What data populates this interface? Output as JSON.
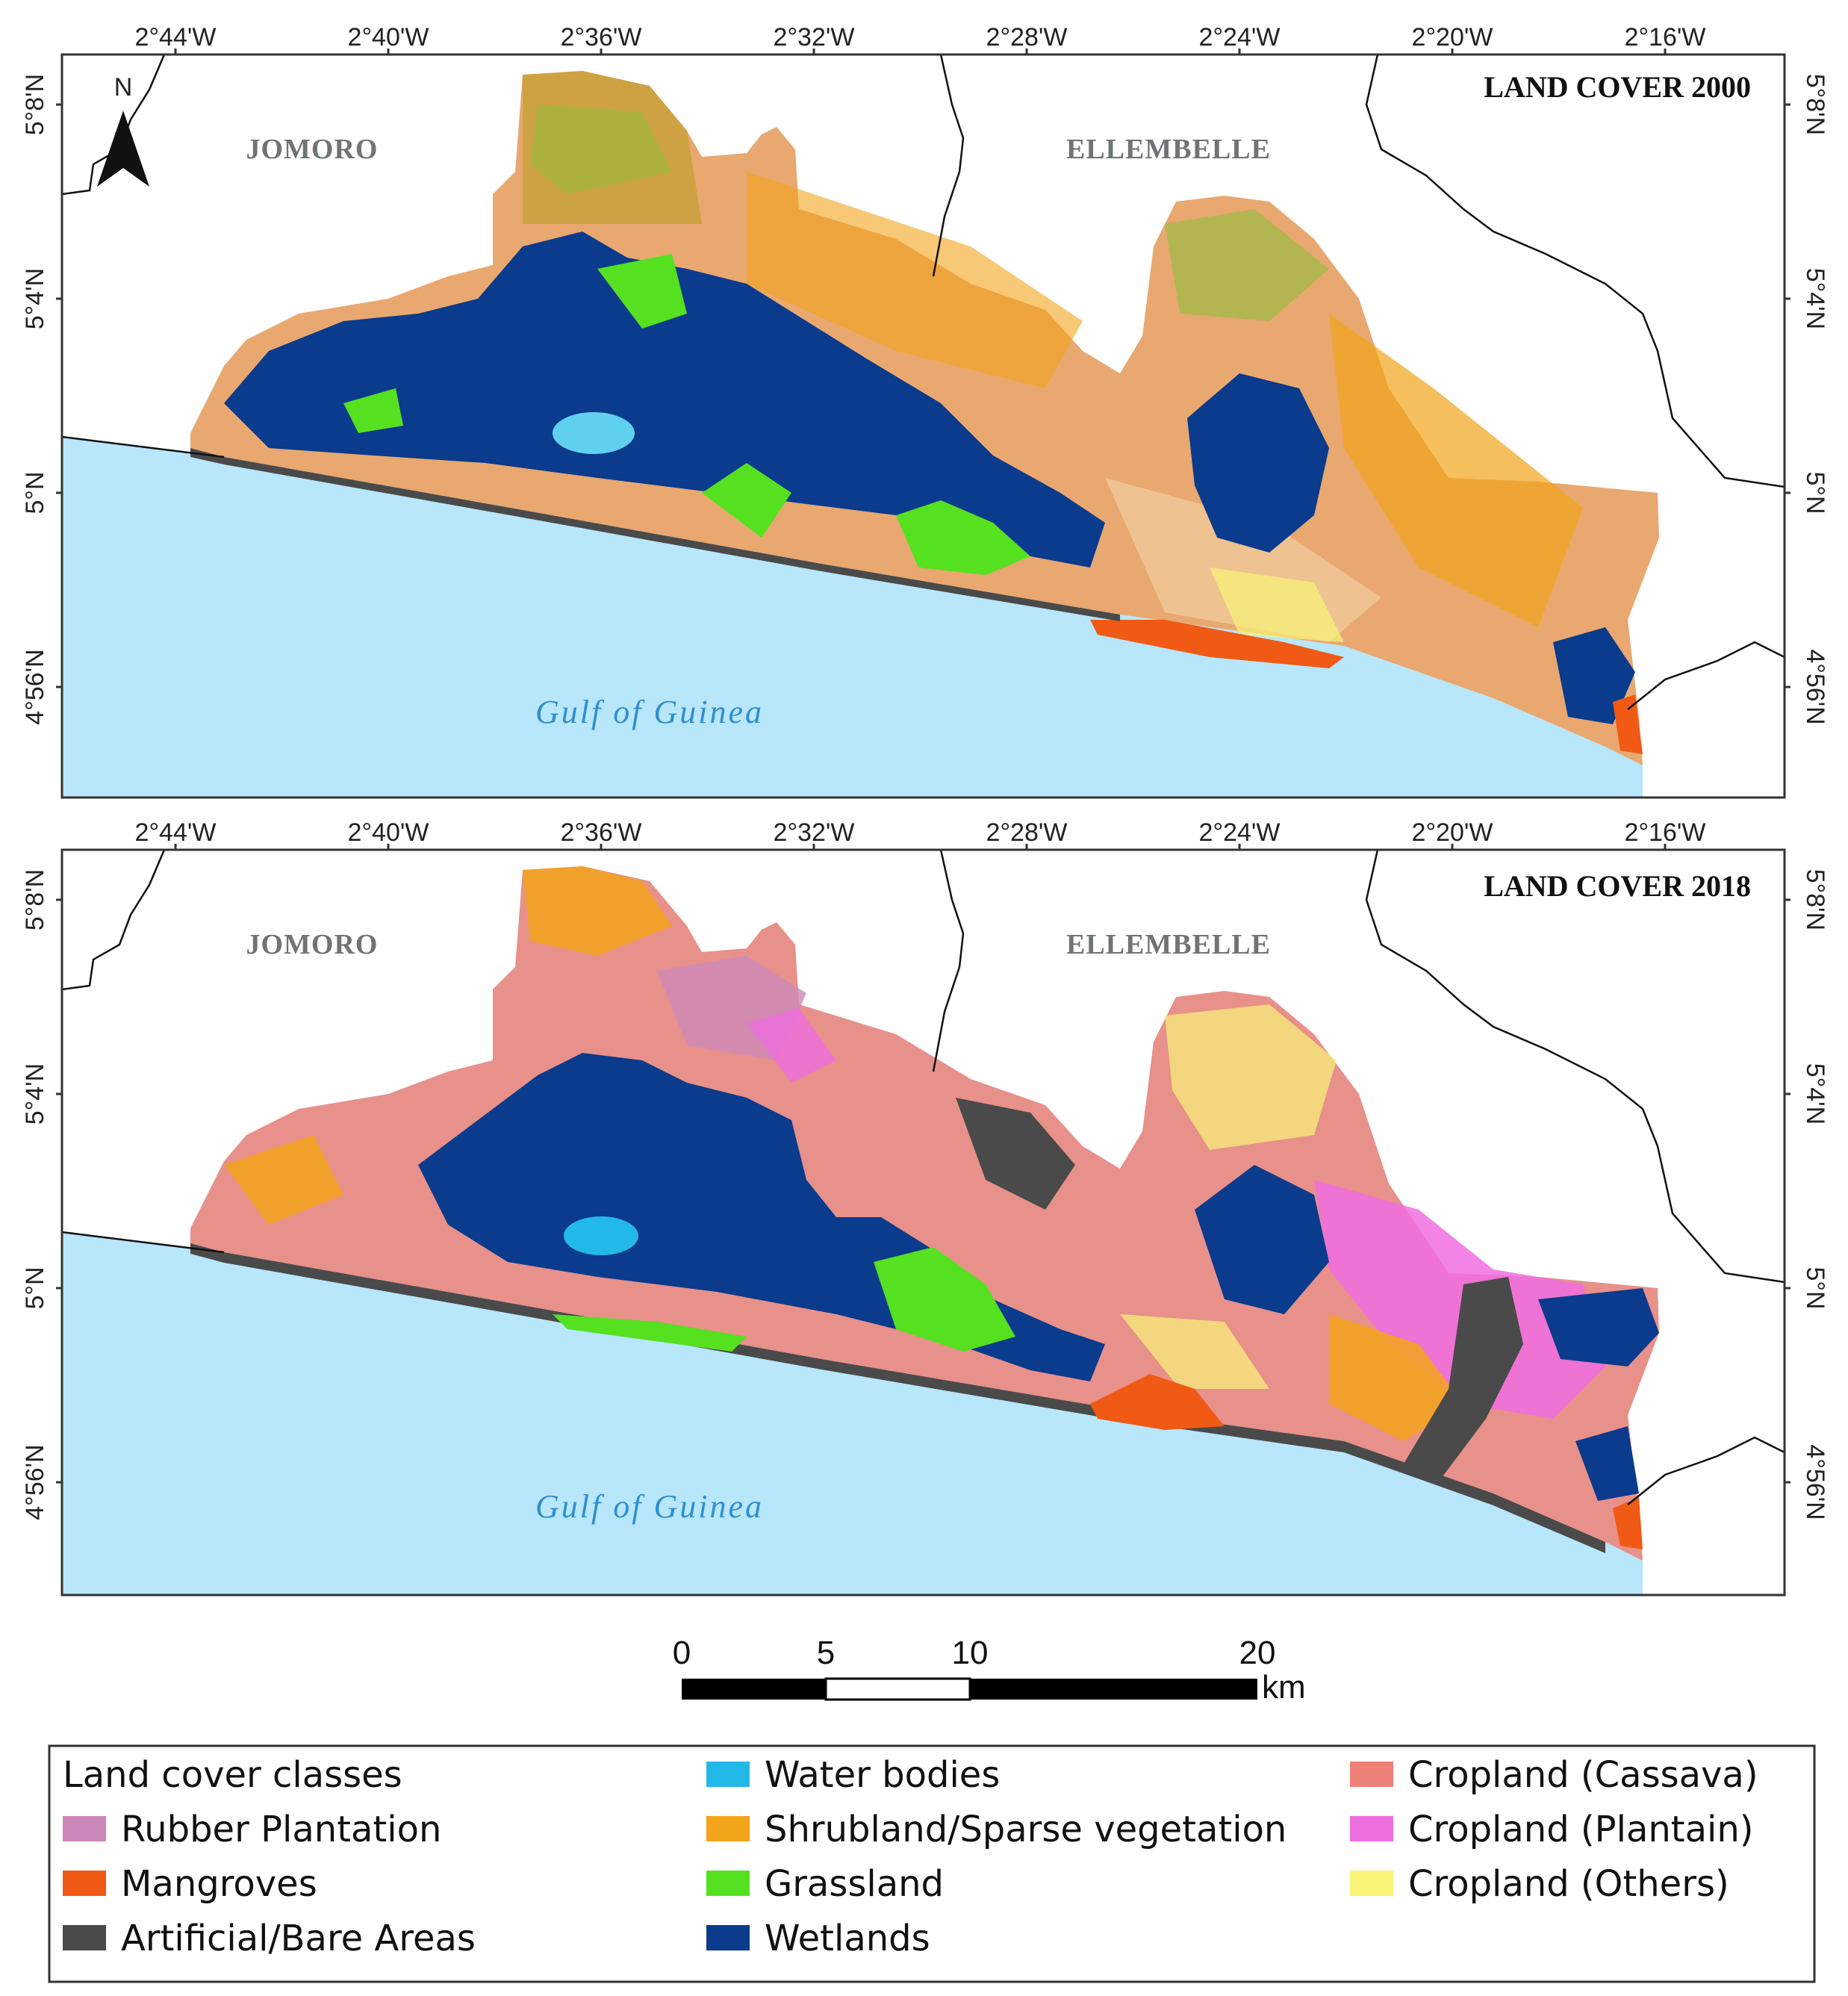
{
  "maps": [
    {
      "title": "LAND COVER 2000",
      "districts": [
        "JOMORO",
        "ELLEMBELLE"
      ],
      "sea_label": "Gulf of Guinea",
      "north_arrow": "N"
    },
    {
      "title": "LAND COVER 2018",
      "districts": [
        "JOMORO",
        "ELLEMBELLE"
      ],
      "sea_label": "Gulf of Guinea"
    }
  ],
  "lon_ticks": [
    "2°44'W",
    "2°40'W",
    "2°36'W",
    "2°32'W",
    "2°28'W",
    "2°24'W",
    "2°20'W",
    "2°16'W"
  ],
  "lat_ticks": [
    "5°8'N",
    "5°4'N",
    "5°N",
    "4°56'N"
  ],
  "scale_bar": {
    "ticks": [
      "0",
      "5",
      "10",
      "20"
    ],
    "unit": "km"
  },
  "legend": {
    "title": "Land cover classes",
    "classes": [
      {
        "label": "Rubber Plantation",
        "color": "#cc88b8"
      },
      {
        "label": "Mangroves",
        "color": "#f05a14"
      },
      {
        "label": "Artificial/Bare Areas",
        "color": "#4a4a4a"
      },
      {
        "label": "Water bodies",
        "color": "#22b8e8"
      },
      {
        "label": "Shrubland/Sparse vegetation",
        "color": "#f2a41a"
      },
      {
        "label": "Grassland",
        "color": "#55e020"
      },
      {
        "label": "Wetlands",
        "color": "#0a3b8c"
      },
      {
        "label": "Cropland (Cassava)",
        "color": "#ee8078"
      },
      {
        "label": "Cropland (Plantain)",
        "color": "#ee6ee0"
      },
      {
        "label": "Cropland (Others)",
        "color": "#f8f478"
      }
    ]
  },
  "colors": {
    "sea": "#b8e6fa",
    "frame": "#333333"
  }
}
